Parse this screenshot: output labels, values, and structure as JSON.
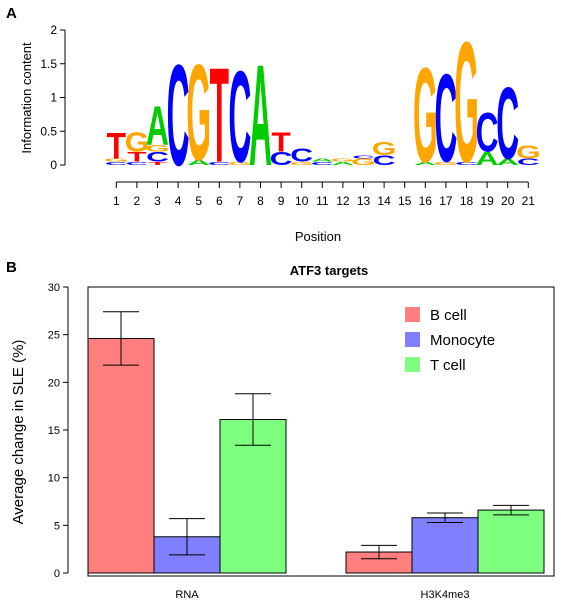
{
  "chart_data": [
    {
      "type": "sequence_logo",
      "panel": "A",
      "xlabel": "Position",
      "ylabel": "Information content",
      "ylim": [
        0,
        2
      ],
      "yticks": [
        0,
        0.5,
        1,
        1.5,
        2
      ],
      "positions": [
        "1",
        "2",
        "3",
        "4",
        "5",
        "6",
        "7",
        "8",
        "9",
        "10",
        "11",
        "12",
        "13",
        "14",
        "15",
        "16",
        "17",
        "18",
        "19",
        "20",
        "21"
      ],
      "base_colors": {
        "A": "#00cc00",
        "C": "#0000ff",
        "G": "#ffa500",
        "T": "#ff0000"
      },
      "columns": [
        [
          {
            "b": "C",
            "h": 0.05
          },
          {
            "b": "G",
            "h": 0.05
          },
          {
            "b": "T",
            "h": 0.4
          }
        ],
        [
          {
            "b": "C",
            "h": 0.05
          },
          {
            "b": "T",
            "h": 0.15
          },
          {
            "b": "G",
            "h": 0.3
          }
        ],
        [
          {
            "b": "T",
            "h": 0.05
          },
          {
            "b": "C",
            "h": 0.15
          },
          {
            "b": "G",
            "h": 0.1
          },
          {
            "b": "A",
            "h": 0.6
          }
        ],
        [
          {
            "b": "C",
            "h": 1.55
          }
        ],
        [
          {
            "b": "A",
            "h": 0.08
          },
          {
            "b": "G",
            "h": 1.47
          }
        ],
        [
          {
            "b": "C",
            "h": 0.05
          },
          {
            "b": "T",
            "h": 1.45
          }
        ],
        [
          {
            "b": "G",
            "h": 0.05
          },
          {
            "b": "C",
            "h": 1.4
          }
        ],
        [
          {
            "b": "A",
            "h": 1.55
          }
        ],
        [
          {
            "b": "C",
            "h": 0.2
          },
          {
            "b": "T",
            "h": 0.3
          }
        ],
        [
          {
            "b": "G",
            "h": 0.05
          },
          {
            "b": "C",
            "h": 0.2
          }
        ],
        [
          {
            "b": "C",
            "h": 0.05
          },
          {
            "b": "A",
            "h": 0.05
          }
        ],
        [
          {
            "b": "A",
            "h": 0.05
          },
          {
            "b": "G",
            "h": 0.05
          }
        ],
        [
          {
            "b": "G",
            "h": 0.1
          },
          {
            "b": "C",
            "h": 0.05
          }
        ],
        [
          {
            "b": "C",
            "h": 0.15
          },
          {
            "b": "G",
            "h": 0.2
          }
        ],
        [],
        [
          {
            "b": "A",
            "h": 0.05
          },
          {
            "b": "G",
            "h": 1.45
          }
        ],
        [
          {
            "b": "G",
            "h": 0.05
          },
          {
            "b": "C",
            "h": 1.35
          }
        ],
        [
          {
            "b": "C",
            "h": 0.05
          },
          {
            "b": "G",
            "h": 1.85
          }
        ],
        [
          {
            "b": "A",
            "h": 0.2
          },
          {
            "b": "C",
            "h": 0.6
          }
        ],
        [
          {
            "b": "A",
            "h": 0.1
          },
          {
            "b": "C",
            "h": 1.1
          }
        ],
        [
          {
            "b": "C",
            "h": 0.1
          },
          {
            "b": "G",
            "h": 0.2
          }
        ]
      ]
    },
    {
      "type": "bar",
      "panel": "B",
      "title": "ATF3 targets",
      "xlabel": "",
      "ylabel": "Average change in SLE (%)",
      "ylim": [
        0,
        30
      ],
      "yticks": [
        0,
        5,
        10,
        15,
        20,
        25,
        30
      ],
      "categories": [
        "RNA",
        "H3K4me3"
      ],
      "legend_position": "top-right",
      "series": [
        {
          "name": "B cell",
          "color": "#ff7f7f",
          "values": [
            24.6,
            2.2
          ],
          "errors": [
            2.8,
            0.7
          ]
        },
        {
          "name": "Monocyte",
          "color": "#7f7fff",
          "values": [
            3.8,
            5.8
          ],
          "errors": [
            1.9,
            0.5
          ]
        },
        {
          "name": "T cell",
          "color": "#7fff7f",
          "values": [
            16.1,
            6.6
          ],
          "errors": [
            2.7,
            0.5
          ]
        }
      ]
    }
  ]
}
